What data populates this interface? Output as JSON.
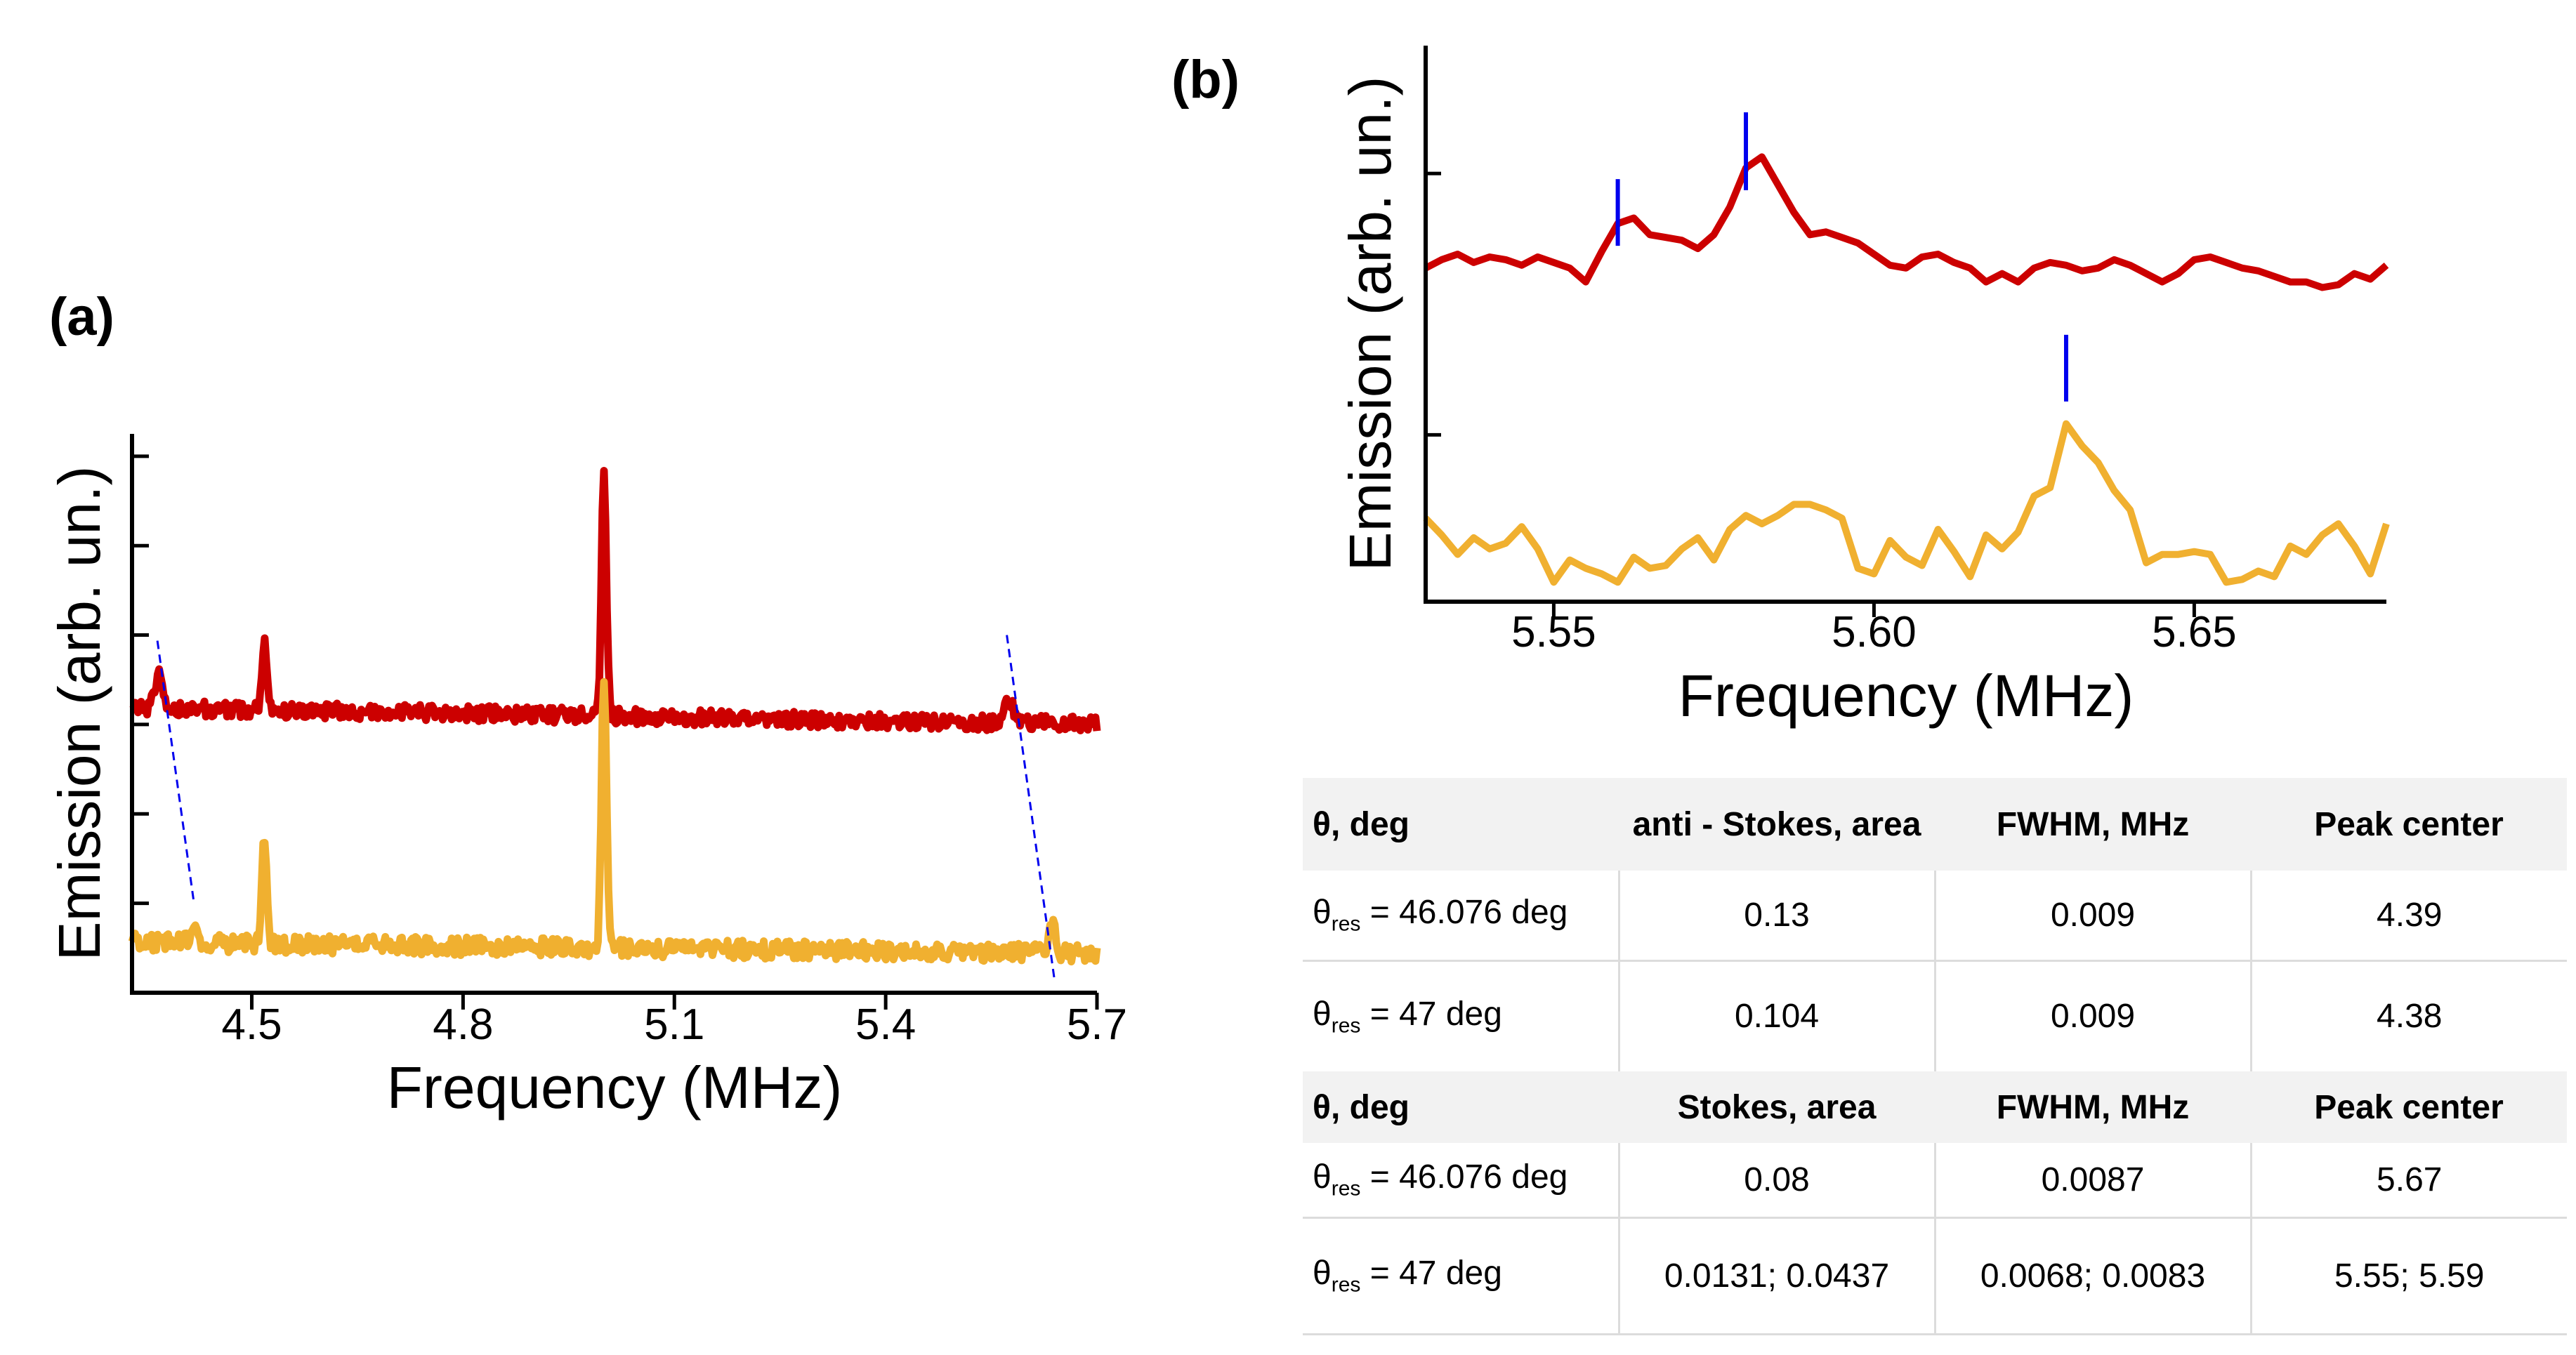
{
  "chart_data": [
    {
      "panel": "(a)",
      "type": "line",
      "title": "",
      "xlabel": "Frequency (MHz)",
      "ylabel": "Emission (arb. un.)",
      "xlim": [
        4.33,
        5.7
      ],
      "ylim": [
        0,
        1.0
      ],
      "xticks": [
        "4.5",
        "4.8",
        "5.1",
        "5.4",
        "5.7"
      ],
      "xtick_values": [
        4.5,
        4.8,
        5.1,
        5.4,
        5.7
      ],
      "ytick_values": [
        0.0,
        0.16,
        0.32,
        0.48,
        0.64,
        0.8,
        0.96
      ],
      "series": [
        {
          "name": "red",
          "color": "#cc0000",
          "baseline": 0.51,
          "noise": 0.014,
          "trend": -0.03,
          "peaks": [
            {
              "x": 4.368,
              "h": 0.06,
              "w": 0.006
            },
            {
              "x": 4.518,
              "h": 0.12,
              "w": 0.0035
            },
            {
              "x": 5.0,
              "h": 0.43,
              "w": 0.0035
            },
            {
              "x": 5.575,
              "h": 0.04,
              "w": 0.006
            }
          ]
        },
        {
          "name": "yellow",
          "color": "#f0b030",
          "baseline": 0.09,
          "noise": 0.016,
          "trend": -0.02,
          "peaks": [
            {
              "x": 4.418,
              "h": 0.04,
              "w": 0.005
            },
            {
              "x": 4.518,
              "h": 0.19,
              "w": 0.0035
            },
            {
              "x": 5.0,
              "h": 0.48,
              "w": 0.0035
            },
            {
              "x": 5.637,
              "h": 0.06,
              "w": 0.004
            }
          ]
        }
      ],
      "dashed_guides": [
        {
          "x1": 4.366,
          "y1": 0.63,
          "x2": 4.418,
          "y2": 0.16
        },
        {
          "x1": 5.572,
          "y1": 0.64,
          "x2": 5.64,
          "y2": 0.02
        }
      ],
      "guide_color": "#0000ee"
    },
    {
      "panel": "(b)",
      "type": "line",
      "title": "",
      "xlabel": "Frequency (MHz)",
      "ylabel": "Emission (arb. un.)",
      "xlim": [
        5.53,
        5.68
      ],
      "ylim": [
        0,
        1.0
      ],
      "xticks": [
        "5.55",
        "5.60",
        "5.65"
      ],
      "xtick_values": [
        5.55,
        5.6,
        5.65
      ],
      "ytick_values": [
        0.3,
        0.77
      ],
      "series": [
        {
          "name": "red",
          "color": "#cc0000",
          "x": [
            5.53,
            5.5325,
            5.535,
            5.5375,
            5.54,
            5.5425,
            5.545,
            5.5475,
            5.55,
            5.5525,
            5.555,
            5.5575,
            5.56,
            5.5625,
            5.565,
            5.5675,
            5.57,
            5.5725,
            5.575,
            5.5775,
            5.58,
            5.5825,
            5.585,
            5.5875,
            5.59,
            5.5925,
            5.595,
            5.5975,
            5.6,
            5.6025,
            5.605,
            5.6075,
            5.61,
            5.6125,
            5.615,
            5.6175,
            5.62,
            5.6225,
            5.625,
            5.6275,
            5.63,
            5.6325,
            5.635,
            5.6375,
            5.64,
            5.6425,
            5.645,
            5.6475,
            5.65,
            5.6525,
            5.655,
            5.6575,
            5.66,
            5.6625,
            5.665,
            5.6675,
            5.67,
            5.6725,
            5.675,
            5.6775,
            5.68
          ],
          "y": [
            0.6,
            0.615,
            0.625,
            0.61,
            0.62,
            0.615,
            0.605,
            0.62,
            0.61,
            0.6,
            0.575,
            0.63,
            0.68,
            0.69,
            0.66,
            0.655,
            0.65,
            0.635,
            0.66,
            0.71,
            0.78,
            0.8,
            0.75,
            0.7,
            0.66,
            0.665,
            0.655,
            0.645,
            0.625,
            0.605,
            0.6,
            0.62,
            0.625,
            0.61,
            0.6,
            0.575,
            0.59,
            0.575,
            0.6,
            0.61,
            0.605,
            0.595,
            0.6,
            0.615,
            0.605,
            0.59,
            0.575,
            0.59,
            0.615,
            0.62,
            0.61,
            0.6,
            0.595,
            0.585,
            0.575,
            0.575,
            0.565,
            0.57,
            0.59,
            0.58,
            0.605
          ]
        },
        {
          "name": "yellow",
          "color": "#f0b030",
          "x": [
            5.53,
            5.5325,
            5.535,
            5.5375,
            5.54,
            5.5425,
            5.545,
            5.5475,
            5.55,
            5.5525,
            5.555,
            5.5575,
            5.56,
            5.5625,
            5.565,
            5.5675,
            5.57,
            5.5725,
            5.575,
            5.5775,
            5.58,
            5.5825,
            5.585,
            5.5875,
            5.59,
            5.5925,
            5.595,
            5.5975,
            5.6,
            5.6025,
            5.605,
            5.6075,
            5.61,
            5.6125,
            5.615,
            5.6175,
            5.62,
            5.6225,
            5.625,
            5.6275,
            5.63,
            5.6325,
            5.635,
            5.6375,
            5.64,
            5.6425,
            5.645,
            5.6475,
            5.65,
            5.6525,
            5.655,
            5.6575,
            5.66,
            5.6625,
            5.665,
            5.6675,
            5.67,
            5.6725,
            5.675,
            5.6775,
            5.68
          ],
          "y": [
            0.15,
            0.12,
            0.085,
            0.115,
            0.095,
            0.105,
            0.135,
            0.095,
            0.035,
            0.075,
            0.06,
            0.05,
            0.035,
            0.08,
            0.06,
            0.065,
            0.095,
            0.115,
            0.075,
            0.13,
            0.155,
            0.14,
            0.155,
            0.175,
            0.175,
            0.165,
            0.15,
            0.06,
            0.05,
            0.11,
            0.08,
            0.065,
            0.13,
            0.09,
            0.045,
            0.12,
            0.095,
            0.125,
            0.19,
            0.205,
            0.32,
            0.28,
            0.25,
            0.2,
            0.165,
            0.07,
            0.085,
            0.085,
            0.09,
            0.085,
            0.035,
            0.04,
            0.055,
            0.045,
            0.1,
            0.085,
            0.12,
            0.14,
            0.1,
            0.05,
            0.14
          ]
        }
      ],
      "markers": [
        {
          "x": 5.56,
          "y1": 0.64,
          "y2": 0.76
        },
        {
          "x": 5.58,
          "y1": 0.74,
          "y2": 0.88
        },
        {
          "x": 5.63,
          "y1": 0.36,
          "y2": 0.48
        }
      ],
      "marker_color": "#0000ee"
    }
  ],
  "labels": {
    "panel_a": "(a)",
    "panel_b": "(b)"
  },
  "table": {
    "header1": [
      "θ, deg",
      "anti - Stokes, area",
      "FWHM, MHz",
      "Peak center"
    ],
    "rows1": [
      {
        "theta_sub": "res",
        "theta_rest": " = 46.076 deg",
        "area": "0.13",
        "fwhm": "0.009",
        "center": "4.39"
      },
      {
        "theta_sub": "res",
        "theta_rest": " = 47 deg",
        "area": "0.104",
        "fwhm": "0.009",
        "center": "4.38"
      }
    ],
    "header2": [
      "θ, deg",
      "Stokes, area",
      "FWHM, MHz",
      "Peak center"
    ],
    "rows2": [
      {
        "theta_sub": "res",
        "theta_rest": " = 46.076 deg",
        "area": "0.08",
        "fwhm": "0.0087",
        "center": "5.67"
      },
      {
        "theta_sub": "res",
        "theta_rest": " = 47 deg",
        "area": "0.0131; 0.0437",
        "fwhm": "0.0068; 0.0083",
        "center": "5.55; 5.59"
      }
    ]
  }
}
